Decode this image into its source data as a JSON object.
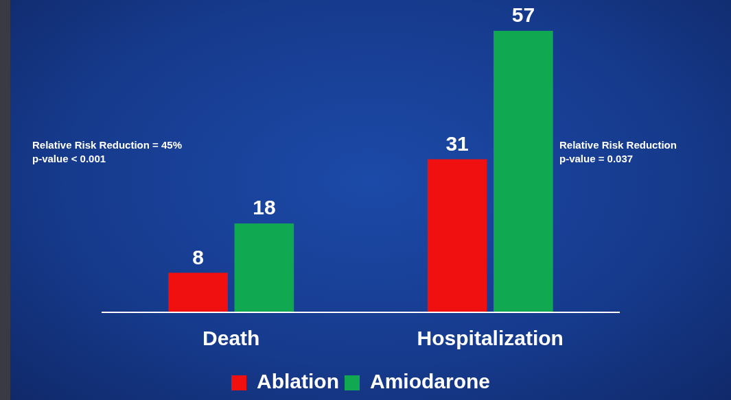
{
  "chart_data": {
    "type": "bar",
    "categories": [
      "Death",
      "Hospitalization"
    ],
    "series": [
      {
        "name": "Ablation",
        "color": "#f01010",
        "values": [
          8,
          31
        ]
      },
      {
        "name": "Amiodarone",
        "color": "#10a850",
        "values": [
          18,
          57
        ]
      }
    ],
    "tick_labels": "x",
    "data_labels": true,
    "grid": false,
    "legend": "bottom",
    "annotations": [
      "Relative Risk Reduction = 45%\np-value < 0.001",
      "Relative Risk Reduction\np-value = 0.037"
    ]
  }
}
